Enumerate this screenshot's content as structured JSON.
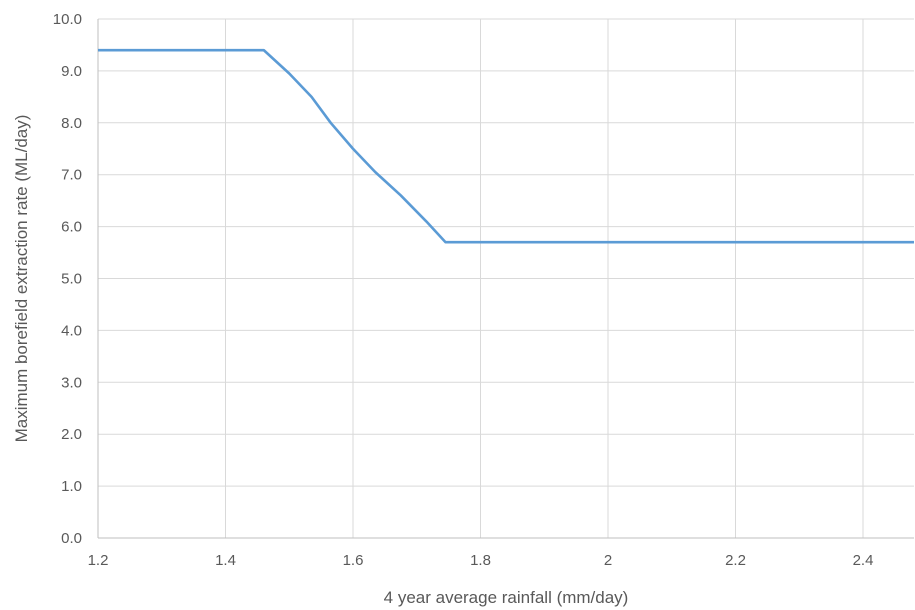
{
  "chart_data": {
    "type": "line",
    "xlabel": "4 year average rainfall (mm/day)",
    "ylabel": "Maximum borefield extraction rate (ML/day)",
    "xlim": [
      1.2,
      2.48
    ],
    "ylim": [
      0,
      10
    ],
    "x_ticks": [
      1.2,
      1.4,
      1.6,
      1.8,
      2,
      2.2,
      2.4
    ],
    "x_tick_labels": [
      "1.2",
      "1.4",
      "1.6",
      "1.8",
      "2",
      "2.2",
      "2.4"
    ],
    "y_ticks": [
      0,
      1,
      2,
      3,
      4,
      5,
      6,
      7,
      8,
      9,
      10
    ],
    "y_tick_labels": [
      "0.0",
      "1.0",
      "2.0",
      "3.0",
      "4.0",
      "5.0",
      "6.0",
      "7.0",
      "8.0",
      "9.0",
      "10.0"
    ],
    "grid": true,
    "legend": "none",
    "series": [
      {
        "color": "#5b9bd5",
        "x": [
          1.2,
          1.46,
          1.5,
          1.535,
          1.565,
          1.6,
          1.635,
          1.675,
          1.715,
          1.745,
          2.48
        ],
        "y": [
          9.4,
          9.4,
          8.95,
          8.5,
          8.0,
          7.5,
          7.05,
          6.6,
          6.1,
          5.7,
          5.7
        ]
      }
    ]
  }
}
